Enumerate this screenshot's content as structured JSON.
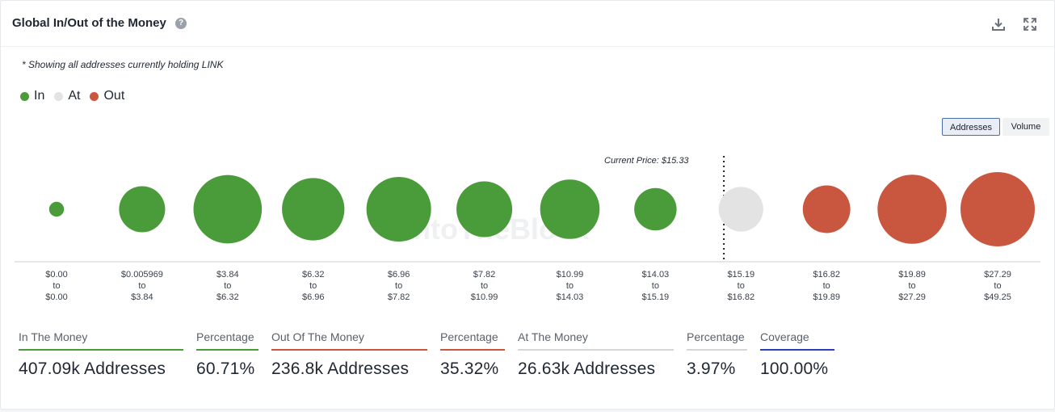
{
  "header": {
    "title": "Global In/Out of the Money",
    "help_icon": "?"
  },
  "note": "* Showing all addresses currently holding LINK",
  "legend": [
    {
      "label": "In",
      "color": "#4a9c3a"
    },
    {
      "label": "At",
      "color": "#e3e3e3"
    },
    {
      "label": "Out",
      "color": "#c9573f"
    }
  ],
  "toggles": {
    "addresses": "Addresses",
    "volume": "Volume"
  },
  "watermark": "IntoTheBlock",
  "current_price_label": "Current Price: $15.33",
  "chart_data": {
    "type": "bubble",
    "title": "Global In/Out of the Money",
    "metric": "Addresses",
    "current_price": 15.33,
    "bins": [
      {
        "from": "$0.00",
        "to": "$0.00",
        "status": "In",
        "relative_size": 0.2
      },
      {
        "from": "$0.005969",
        "to": "$3.84",
        "status": "In",
        "relative_size": 0.62
      },
      {
        "from": "$3.84",
        "to": "$6.32",
        "status": "In",
        "relative_size": 0.92
      },
      {
        "from": "$6.32",
        "to": "$6.96",
        "status": "In",
        "relative_size": 0.84
      },
      {
        "from": "$6.96",
        "to": "$7.82",
        "status": "In",
        "relative_size": 0.87
      },
      {
        "from": "$7.82",
        "to": "$10.99",
        "status": "In",
        "relative_size": 0.75
      },
      {
        "from": "$10.99",
        "to": "$14.03",
        "status": "In",
        "relative_size": 0.8
      },
      {
        "from": "$14.03",
        "to": "$15.19",
        "status": "In",
        "relative_size": 0.57
      },
      {
        "from": "$15.19",
        "to": "$16.82",
        "status": "At",
        "relative_size": 0.6
      },
      {
        "from": "$16.82",
        "to": "$19.89",
        "status": "Out",
        "relative_size": 0.64
      },
      {
        "from": "$19.89",
        "to": "$27.29",
        "status": "Out",
        "relative_size": 0.93
      },
      {
        "from": "$27.29",
        "to": "$49.25",
        "status": "Out",
        "relative_size": 1.0
      }
    ],
    "colors": {
      "In": "#4a9c3a",
      "At": "#e3e3e3",
      "Out": "#c9573f"
    },
    "to_word": "to"
  },
  "stats": [
    {
      "label": "In The Money",
      "value": "407.09k Addresses",
      "color": "#4a9c3a"
    },
    {
      "label": "Percentage",
      "value": "60.71%",
      "color": "#4a9c3a"
    },
    {
      "label": "Out Of The Money",
      "value": "236.8k Addresses",
      "color": "#c9573f"
    },
    {
      "label": "Percentage",
      "value": "35.32%",
      "color": "#c9573f"
    },
    {
      "label": "At The Money",
      "value": "26.63k Addresses",
      "color": "#d6d6d6"
    },
    {
      "label": "Percentage",
      "value": "3.97%",
      "color": "#d6d6d6"
    },
    {
      "label": "Coverage",
      "value": "100.00%",
      "color": "#2b3fb8"
    }
  ]
}
